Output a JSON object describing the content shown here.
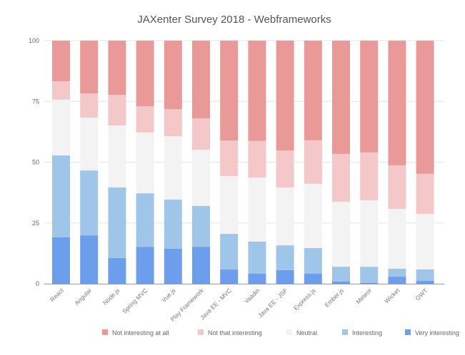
{
  "chart_data": {
    "type": "bar",
    "stacked": true,
    "percent": true,
    "title": "JAXenter Survey 2018 - Webframeworks",
    "xlabel": "",
    "ylabel": "",
    "ylim": [
      0,
      100
    ],
    "yticks": [
      "0",
      "25",
      "50",
      "75",
      "100"
    ],
    "grid": true,
    "legend_position": "bottom",
    "categories": [
      "React",
      "Angular",
      "Node.js",
      "Spring MVC",
      "Vue.js",
      "Play Framework",
      "Java EE - MVC",
      "Vaadin",
      "Java EE - JSF",
      "Express.js",
      "Ember.js",
      "Meteor",
      "Wicket",
      "GWT"
    ],
    "series": [
      {
        "name": "Very interesting",
        "color": "#6d9eeb",
        "values": [
          19.1,
          19.9,
          10.6,
          15.2,
          14.4,
          15.2,
          5.9,
          4.1,
          5.6,
          4.1,
          0.9,
          0.3,
          2.9,
          1.2
        ]
      },
      {
        "name": "Interesting",
        "color": "#9fc5e8",
        "values": [
          33.7,
          26.7,
          29.0,
          22.0,
          20.2,
          16.8,
          14.6,
          13.2,
          10.2,
          10.6,
          6.1,
          6.7,
          3.3,
          4.7
        ]
      },
      {
        "name": "Neutral",
        "color": "#f3f3f3",
        "values": [
          22.9,
          21.7,
          25.5,
          25.0,
          26.1,
          23.1,
          23.8,
          26.4,
          23.8,
          26.4,
          26.7,
          27.3,
          24.6,
          22.8
        ]
      },
      {
        "name": "Not that interesting",
        "color": "#f4c7c8",
        "values": [
          7.6,
          10.0,
          12.6,
          10.8,
          11.1,
          12.9,
          14.6,
          15.0,
          15.2,
          17.9,
          19.7,
          19.7,
          17.9,
          16.5
        ]
      },
      {
        "name": "Not interesting at all",
        "color": "#ea9999",
        "values": [
          16.7,
          21.7,
          22.3,
          27.0,
          28.2,
          32.0,
          41.1,
          41.3,
          45.2,
          41.0,
          46.6,
          46.0,
          51.3,
          54.8
        ]
      }
    ],
    "legend_order": [
      "Not interesting at all",
      "Not that interesting",
      "Neutral",
      "Interesting",
      "Very interesting"
    ]
  }
}
